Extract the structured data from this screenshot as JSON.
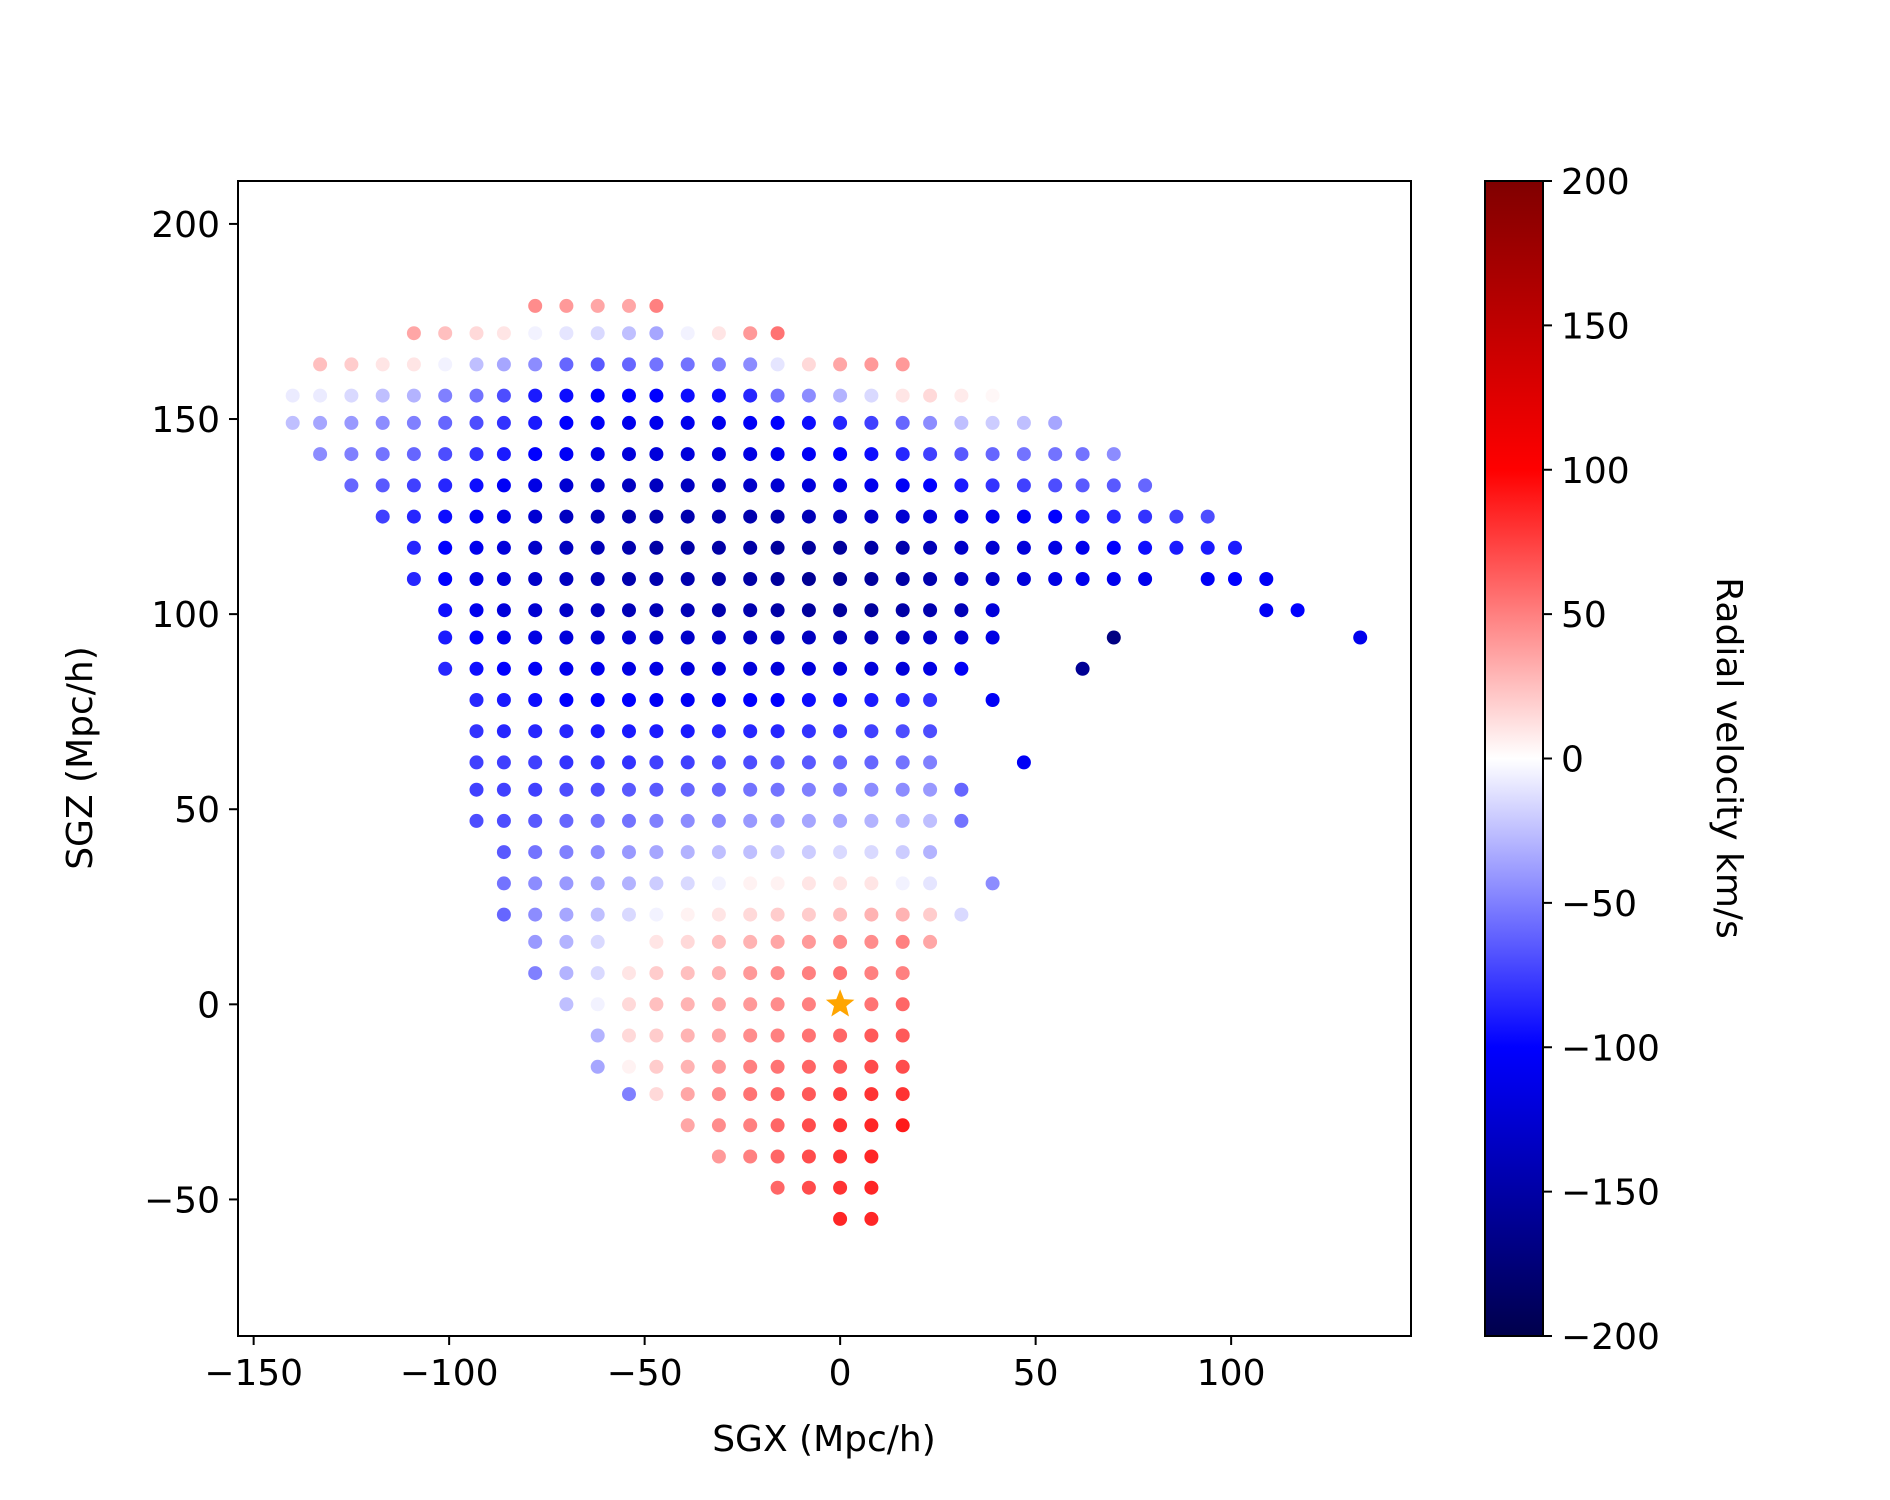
{
  "chart_data": {
    "type": "scatter",
    "xlabel": "SGX (Mpc/h)",
    "ylabel": "SGZ (Mpc/h)",
    "xlim": [
      -154,
      146
    ],
    "ylim": [
      -85,
      211
    ],
    "xticks": [
      -150,
      -100,
      -50,
      0,
      50,
      100
    ],
    "xtick_labels": [
      "−150",
      "−100",
      "−50",
      "0",
      "50",
      "100"
    ],
    "yticks": [
      -50,
      0,
      50,
      100,
      150,
      200
    ],
    "ytick_labels": [
      "−50",
      "0",
      "50",
      "100",
      "150",
      "200"
    ],
    "colorbar": {
      "label": "Radial velocity km/s",
      "range": [
        -200,
        200
      ],
      "colormap": "seismic",
      "ticks": [
        -200,
        -150,
        -100,
        -50,
        0,
        50,
        100,
        150,
        200
      ],
      "tick_labels": [
        "−200",
        "−150",
        "−100",
        "−50",
        "0",
        "50",
        "100",
        "150",
        "200"
      ]
    },
    "grid": false,
    "marker": {
      "label": "observer",
      "x": 0,
      "y": 0,
      "color": "#ffa500",
      "shape": "star"
    },
    "grid_spacing": 7.8,
    "rows": [
      {
        "y": 179,
        "x": [
          -78,
          -70,
          -62,
          -54,
          -47
        ],
        "v": [
          45,
          40,
          35,
          35,
          50
        ]
      },
      {
        "y": 172,
        "x": [
          -109,
          -101,
          -93,
          -86,
          -78,
          -70,
          -62,
          -54,
          -47,
          -39,
          -31,
          -23,
          -16
        ],
        "v": [
          35,
          25,
          15,
          10,
          -5,
          -10,
          -15,
          -25,
          -35,
          -5,
          10,
          40,
          55
        ]
      },
      {
        "y": 164,
        "x": [
          -133,
          -125,
          -117,
          -109,
          -101,
          -93,
          -86,
          -78,
          -70,
          -62,
          -54,
          -47,
          -39,
          -31,
          -23,
          -16,
          -8,
          0,
          8,
          16
        ],
        "v": [
          25,
          20,
          10,
          10,
          -5,
          -25,
          -35,
          -45,
          -60,
          -65,
          -60,
          -55,
          -55,
          -50,
          -45,
          -10,
          15,
          35,
          40,
          40
        ]
      },
      {
        "y": 156,
        "x": [
          -140,
          -133,
          -125,
          -117,
          -109,
          -101,
          -93,
          -86,
          -78,
          -70,
          -62,
          -54,
          -47,
          -39,
          -31,
          -23,
          -16,
          -8,
          0,
          8,
          16,
          23,
          31,
          39
        ],
        "v": [
          -8,
          -8,
          -15,
          -25,
          -30,
          -50,
          -55,
          -70,
          -90,
          -95,
          -100,
          -100,
          -100,
          -95,
          -95,
          -85,
          -55,
          -45,
          -30,
          -15,
          10,
          15,
          8,
          3
        ]
      },
      {
        "y": 149,
        "x": [
          -140,
          -133,
          -125,
          -117,
          -109,
          -101,
          -93,
          -86,
          -78,
          -70,
          -62,
          -54,
          -47,
          -39,
          -31,
          -23,
          -16,
          -8,
          0,
          8,
          16,
          23,
          31,
          39,
          47,
          55
        ],
        "v": [
          -25,
          -35,
          -40,
          -45,
          -50,
          -60,
          -70,
          -80,
          -90,
          -100,
          -105,
          -110,
          -110,
          -110,
          -110,
          -105,
          -100,
          -95,
          -85,
          -75,
          -60,
          -45,
          -25,
          -20,
          -25,
          -35
        ]
      },
      {
        "y": 141,
        "x": [
          -133,
          -125,
          -117,
          -109,
          -101,
          -93,
          -86,
          -78,
          -70,
          -62,
          -54,
          -47,
          -39,
          -31,
          -23,
          -16,
          -8,
          0,
          8,
          16,
          23,
          31,
          39,
          47,
          55,
          62,
          70
        ],
        "v": [
          -45,
          -50,
          -55,
          -60,
          -70,
          -80,
          -90,
          -100,
          -105,
          -115,
          -120,
          -120,
          -120,
          -120,
          -115,
          -110,
          -105,
          -100,
          -95,
          -85,
          -75,
          -65,
          -60,
          -55,
          -55,
          -55,
          -45
        ]
      },
      {
        "y": 133,
        "x": [
          -125,
          -117,
          -109,
          -101,
          -93,
          -86,
          -78,
          -70,
          -62,
          -54,
          -47,
          -39,
          -31,
          -23,
          -16,
          -8,
          0,
          8,
          16,
          23,
          31,
          39,
          47,
          55,
          62,
          70,
          78
        ],
        "v": [
          -60,
          -65,
          -75,
          -85,
          -95,
          -105,
          -115,
          -125,
          -130,
          -135,
          -135,
          -135,
          -135,
          -130,
          -125,
          -120,
          -115,
          -110,
          -105,
          -100,
          -90,
          -80,
          -75,
          -70,
          -65,
          -65,
          -60
        ]
      },
      {
        "y": 125,
        "x": [
          -117,
          -109,
          -101,
          -93,
          -86,
          -78,
          -70,
          -62,
          -54,
          -47,
          -39,
          -31,
          -23,
          -16,
          -8,
          0,
          8,
          16,
          23,
          31,
          39,
          47,
          55,
          62,
          70,
          78,
          86,
          94
        ],
        "v": [
          -75,
          -85,
          -95,
          -105,
          -115,
          -125,
          -135,
          -140,
          -145,
          -145,
          -145,
          -145,
          -145,
          -145,
          -140,
          -135,
          -130,
          -125,
          -120,
          -115,
          -110,
          -105,
          -100,
          -90,
          -85,
          -80,
          -75,
          -70
        ]
      },
      {
        "y": 117,
        "x": [
          -109,
          -101,
          -93,
          -86,
          -78,
          -70,
          -62,
          -54,
          -47,
          -39,
          -31,
          -23,
          -16,
          -8,
          0,
          8,
          16,
          23,
          31,
          39,
          47,
          55,
          62,
          70,
          78,
          86,
          94,
          101
        ],
        "v": [
          -85,
          -100,
          -110,
          -120,
          -130,
          -135,
          -140,
          -145,
          -150,
          -150,
          -150,
          -150,
          -155,
          -155,
          -155,
          -150,
          -145,
          -140,
          -130,
          -125,
          -120,
          -115,
          -110,
          -100,
          -95,
          -90,
          -90,
          -90
        ]
      },
      {
        "y": 109,
        "x": [
          -109,
          -101,
          -93,
          -86,
          -78,
          -70,
          -62,
          -54,
          -47,
          -39,
          -31,
          -23,
          -16,
          -8,
          0,
          8,
          16,
          23,
          31,
          39,
          47,
          55,
          62,
          70,
          78,
          94,
          101,
          109
        ],
        "v": [
          -85,
          -100,
          -115,
          -120,
          -130,
          -135,
          -140,
          -145,
          -145,
          -145,
          -150,
          -150,
          -155,
          -160,
          -160,
          -155,
          -150,
          -145,
          -135,
          -130,
          -120,
          -115,
          -110,
          -110,
          -110,
          -105,
          -100,
          -105
        ]
      },
      {
        "y": 101,
        "x": [
          -101,
          -93,
          -86,
          -78,
          -70,
          -62,
          -54,
          -47,
          -39,
          -31,
          -23,
          -16,
          -8,
          0,
          8,
          16,
          23,
          31,
          39,
          109,
          117
        ],
        "v": [
          -95,
          -110,
          -120,
          -125,
          -130,
          -135,
          -140,
          -140,
          -140,
          -145,
          -145,
          -150,
          -155,
          -155,
          -155,
          -150,
          -145,
          -140,
          -120,
          -105,
          -100
        ]
      },
      {
        "y": 94,
        "x": [
          -101,
          -93,
          -86,
          -78,
          -70,
          -62,
          -54,
          -47,
          -39,
          -31,
          -23,
          -16,
          -8,
          0,
          8,
          16,
          23,
          31,
          39,
          70,
          133
        ],
        "v": [
          -90,
          -100,
          -110,
          -115,
          -120,
          -125,
          -125,
          -130,
          -130,
          -130,
          -135,
          -135,
          -135,
          -140,
          -140,
          -135,
          -130,
          -125,
          -115,
          -170,
          -110
        ]
      },
      {
        "y": 86,
        "x": [
          -101,
          -93,
          -86,
          -78,
          -70,
          -62,
          -54,
          -47,
          -39,
          -31,
          -23,
          -16,
          -8,
          0,
          8,
          16,
          23,
          31,
          62
        ],
        "v": [
          -85,
          -95,
          -100,
          -105,
          -110,
          -110,
          -115,
          -115,
          -120,
          -120,
          -120,
          -120,
          -120,
          -120,
          -120,
          -120,
          -115,
          -105,
          -160
        ]
      },
      {
        "y": 78,
        "x": [
          -93,
          -86,
          -78,
          -70,
          -62,
          -54,
          -47,
          -39,
          -31,
          -23,
          -16,
          -8,
          0,
          8,
          16,
          23,
          39
        ],
        "v": [
          -85,
          -90,
          -95,
          -100,
          -100,
          -100,
          -105,
          -105,
          -105,
          -100,
          -100,
          -95,
          -95,
          -90,
          -85,
          -80,
          -105
        ]
      },
      {
        "y": 70,
        "x": [
          -93,
          -86,
          -78,
          -70,
          -62,
          -54,
          -47,
          -39,
          -31,
          -23,
          -16,
          -8,
          0,
          8,
          16,
          23
        ],
        "v": [
          -80,
          -85,
          -85,
          -85,
          -90,
          -90,
          -90,
          -90,
          -85,
          -85,
          -85,
          -80,
          -80,
          -75,
          -70,
          -70
        ]
      },
      {
        "y": 62,
        "x": [
          -93,
          -86,
          -78,
          -70,
          -62,
          -54,
          -47,
          -39,
          -31,
          -23,
          -16,
          -8,
          0,
          8,
          16,
          23,
          47
        ],
        "v": [
          -75,
          -75,
          -75,
          -80,
          -80,
          -80,
          -75,
          -75,
          -70,
          -70,
          -65,
          -65,
          -60,
          -60,
          -55,
          -50,
          -105
        ]
      },
      {
        "y": 55,
        "x": [
          -93,
          -86,
          -78,
          -70,
          -62,
          -54,
          -47,
          -39,
          -31,
          -23,
          -16,
          -8,
          0,
          8,
          16,
          23,
          31
        ],
        "v": [
          -75,
          -75,
          -75,
          -70,
          -70,
          -65,
          -65,
          -60,
          -60,
          -55,
          -55,
          -50,
          -50,
          -45,
          -45,
          -40,
          -60
        ]
      },
      {
        "y": 47,
        "x": [
          -93,
          -86,
          -78,
          -70,
          -62,
          -54,
          -47,
          -39,
          -31,
          -23,
          -16,
          -8,
          0,
          8,
          16,
          23,
          31
        ],
        "v": [
          -70,
          -70,
          -65,
          -60,
          -55,
          -55,
          -50,
          -45,
          -45,
          -40,
          -40,
          -35,
          -35,
          -30,
          -30,
          -25,
          -55
        ]
      },
      {
        "y": 39,
        "x": [
          -86,
          -78,
          -70,
          -62,
          -54,
          -47,
          -39,
          -31,
          -23,
          -16,
          -8,
          0,
          8,
          16,
          23
        ],
        "v": [
          -65,
          -55,
          -50,
          -45,
          -40,
          -35,
          -30,
          -25,
          -25,
          -20,
          -20,
          -15,
          -15,
          -20,
          -30
        ]
      },
      {
        "y": 31,
        "x": [
          -86,
          -78,
          -70,
          -62,
          -54,
          -47,
          -39,
          -31,
          -23,
          -16,
          -8,
          0,
          8,
          16,
          23,
          39
        ],
        "v": [
          -55,
          -45,
          -40,
          -35,
          -30,
          -20,
          -15,
          -5,
          5,
          5,
          10,
          10,
          10,
          -5,
          -10,
          -45
        ]
      },
      {
        "y": 23,
        "x": [
          -86,
          -78,
          -70,
          -62,
          -54,
          -47,
          -39,
          -31,
          -23,
          -16,
          -8,
          0,
          8,
          16,
          23,
          31
        ],
        "v": [
          -60,
          -45,
          -35,
          -25,
          -15,
          -5,
          5,
          10,
          15,
          20,
          20,
          25,
          30,
          30,
          20,
          -15
        ]
      },
      {
        "y": 16,
        "x": [
          -78,
          -70,
          -62,
          -54,
          -47,
          -39,
          -31,
          -23,
          -16,
          -8,
          0,
          8,
          16,
          23
        ],
        "v": [
          -40,
          -30,
          -15,
          0,
          10,
          15,
          25,
          30,
          35,
          40,
          45,
          45,
          50,
          35
        ]
      },
      {
        "y": 8,
        "x": [
          -78,
          -70,
          -62,
          -54,
          -47,
          -39,
          -31,
          -23,
          -16,
          -8,
          0,
          8,
          16
        ],
        "v": [
          -50,
          -30,
          -15,
          10,
          20,
          25,
          30,
          40,
          45,
          50,
          55,
          50,
          50
        ]
      },
      {
        "y": 0,
        "x": [
          -70,
          -62,
          -54,
          -47,
          -39,
          -31,
          -23,
          -16,
          -8,
          8,
          16
        ],
        "v": [
          -25,
          -5,
          15,
          25,
          30,
          35,
          40,
          45,
          50,
          55,
          60
        ]
      },
      {
        "y": -8,
        "x": [
          -62,
          -54,
          -47,
          -39,
          -31,
          -23,
          -16,
          -8,
          0,
          8,
          16
        ],
        "v": [
          -30,
          15,
          20,
          30,
          35,
          45,
          50,
          55,
          60,
          65,
          65
        ]
      },
      {
        "y": -16,
        "x": [
          -62,
          -54,
          -47,
          -39,
          -31,
          -23,
          -16,
          -8,
          0,
          8,
          16
        ],
        "v": [
          -35,
          5,
          20,
          30,
          40,
          50,
          55,
          60,
          65,
          70,
          70
        ]
      },
      {
        "y": -23,
        "x": [
          -54,
          -47,
          -39,
          -31,
          -23,
          -16,
          -8,
          0,
          8,
          16
        ],
        "v": [
          -50,
          15,
          35,
          45,
          55,
          60,
          65,
          75,
          80,
          80
        ]
      },
      {
        "y": -31,
        "x": [
          -39,
          -31,
          -23,
          -16,
          -8,
          0,
          8,
          16
        ],
        "v": [
          35,
          45,
          50,
          60,
          70,
          80,
          85,
          90
        ]
      },
      {
        "y": -39,
        "x": [
          -31,
          -23,
          -16,
          -8,
          0,
          8
        ],
        "v": [
          40,
          50,
          60,
          70,
          80,
          85
        ]
      },
      {
        "y": -47,
        "x": [
          -16,
          -8,
          0,
          8
        ],
        "v": [
          60,
          70,
          80,
          85
        ]
      },
      {
        "y": -55,
        "x": [
          0,
          8
        ],
        "v": [
          85,
          85
        ]
      }
    ]
  }
}
